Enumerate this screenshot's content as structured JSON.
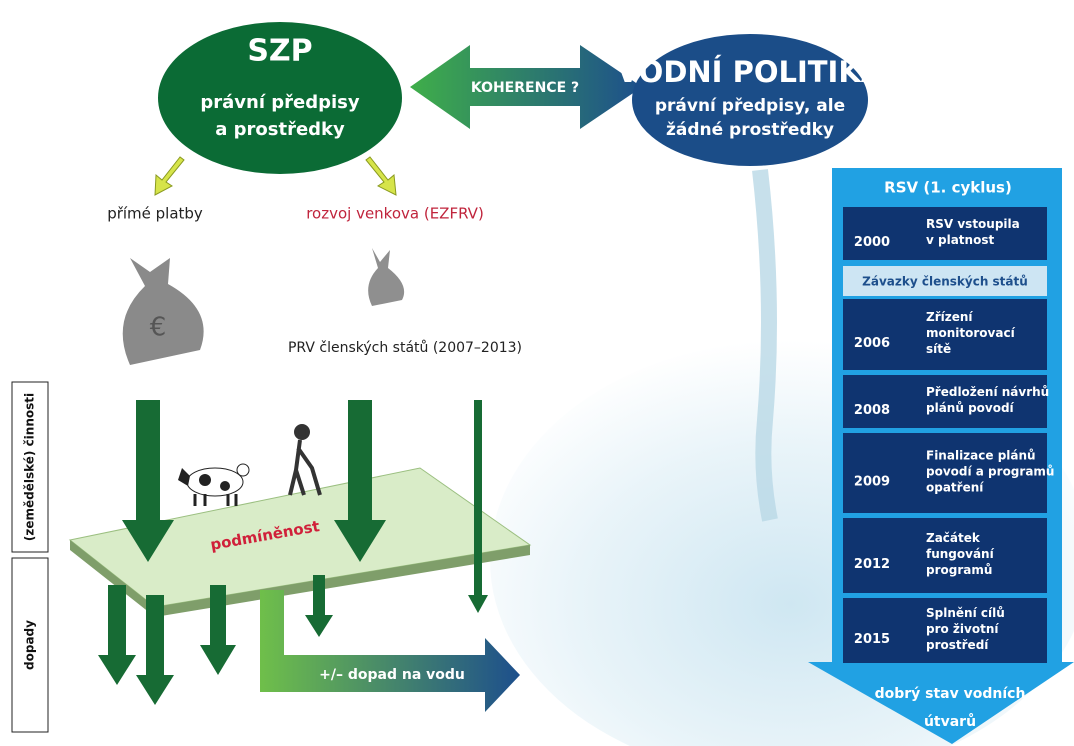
{
  "szp": {
    "title": "SZP",
    "lines": [
      "právní předpisy",
      "a prostředky"
    ]
  },
  "coherence": "KOHERENCE ?",
  "water_policy": {
    "title": "VODNÍ POLITIKA",
    "lines": [
      "právní předpisy, ale",
      "žádné prostředky"
    ]
  },
  "direct_payments": "přímé platby",
  "rural_development": "rozvoj venkova (EZFRV)",
  "rdp": "PRV členských států (2007–2013)",
  "activities": "(zemědělské) činnosti",
  "impacts": "dopady",
  "cross_compliance": "podmíněnost",
  "water_impact": "+/– dopad na vodu",
  "timeline": {
    "title": "RSV (1. cyklus)",
    "commitments": "Závazky členských států",
    "items": [
      {
        "year": 2000,
        "lines": [
          "RSV vstoupila",
          "v platnost"
        ]
      },
      {
        "year": 2006,
        "lines": [
          "Zřízení",
          "monitorovací",
          "sítě"
        ]
      },
      {
        "year": 2008,
        "lines": [
          "Předložení návrhů",
          "plánů povodí"
        ]
      },
      {
        "year": 2009,
        "lines": [
          "Finalizace plánů",
          "povodí a programů",
          "opatření"
        ]
      },
      {
        "year": 2012,
        "lines": [
          "Začátek",
          "fungování",
          "programů"
        ]
      },
      {
        "year": 2015,
        "lines": [
          "Splnění cílů",
          "pro životní",
          "prostředí"
        ]
      }
    ],
    "footer": [
      "dobrý stav vodních",
      "útvarů"
    ]
  }
}
